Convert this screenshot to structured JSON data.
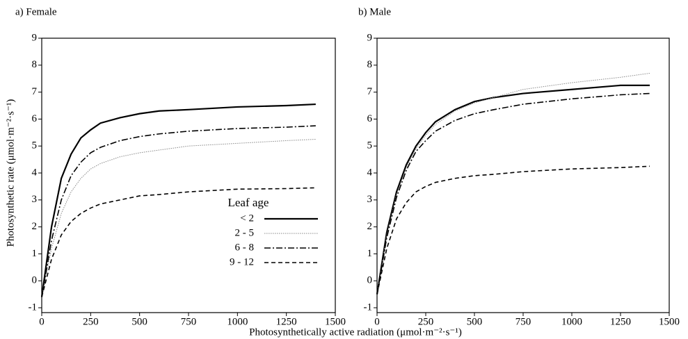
{
  "chart_data": [
    {
      "type": "line",
      "title": "a) Female",
      "ylabel": "Photosynthetic rate (μmol·m⁻²·s⁻¹)",
      "xlabel": "Photosynthetically active radiation (μmol·m⁻²·s⁻¹)",
      "legend_title": "Leaf age",
      "legend": "lower right",
      "x": [
        0,
        50,
        100,
        150,
        200,
        250,
        300,
        400,
        500,
        600,
        750,
        1000,
        1250,
        1400
      ],
      "series": [
        {
          "name": "< 2",
          "color": "#000000",
          "style": "solid",
          "values": [
            -0.6,
            2,
            3.8,
            4.7,
            5.3,
            5.6,
            5.85,
            6.05,
            6.2,
            6.3,
            6.35,
            6.45,
            6.5,
            6.55
          ]
        },
        {
          "name": "2 - 5",
          "color": "#888888",
          "style": "dotted",
          "values": [
            -0.6,
            1.2,
            2.5,
            3.3,
            3.8,
            4.15,
            4.35,
            4.6,
            4.75,
            4.85,
            5.0,
            5.1,
            5.2,
            5.25
          ]
        },
        {
          "name": "6 - 8",
          "color": "#000000",
          "style": "dashdot",
          "values": [
            -0.6,
            1.5,
            3.0,
            3.9,
            4.4,
            4.75,
            4.95,
            5.2,
            5.35,
            5.45,
            5.55,
            5.65,
            5.7,
            5.75
          ]
        },
        {
          "name": "9 - 12",
          "color": "#000000",
          "style": "dashed",
          "values": [
            -0.6,
            0.8,
            1.7,
            2.2,
            2.5,
            2.7,
            2.85,
            3.0,
            3.15,
            3.2,
            3.3,
            3.4,
            3.42,
            3.45
          ]
        }
      ],
      "xlim": [
        0,
        1500
      ],
      "xticks": [
        0,
        250,
        500,
        750,
        1000,
        1250,
        1500
      ],
      "ylim": [
        -1,
        9
      ],
      "yticks": [
        -1,
        0,
        1,
        2,
        3,
        4,
        5,
        6,
        7,
        8,
        9
      ]
    },
    {
      "type": "line",
      "title": "b) Male",
      "x": [
        0,
        50,
        100,
        150,
        200,
        250,
        300,
        400,
        500,
        600,
        750,
        1000,
        1250,
        1400
      ],
      "series": [
        {
          "color": "#000000",
          "style": "solid",
          "values": [
            -0.5,
            1.8,
            3.3,
            4.3,
            5.0,
            5.5,
            5.9,
            6.35,
            6.65,
            6.8,
            6.95,
            7.1,
            7.25,
            7.25
          ]
        },
        {
          "color": "#888888",
          "style": "dotted",
          "values": [
            -0.5,
            1.7,
            3.2,
            4.2,
            4.9,
            5.4,
            5.8,
            6.3,
            6.6,
            6.8,
            7.1,
            7.35,
            7.55,
            7.7
          ]
        },
        {
          "color": "#000000",
          "style": "dashdot",
          "values": [
            -0.5,
            1.6,
            3.1,
            4.1,
            4.8,
            5.2,
            5.55,
            5.95,
            6.2,
            6.35,
            6.55,
            6.75,
            6.9,
            6.95
          ]
        },
        {
          "color": "#000000",
          "style": "dashed",
          "values": [
            -0.5,
            1.2,
            2.3,
            2.9,
            3.3,
            3.5,
            3.65,
            3.8,
            3.9,
            3.95,
            4.05,
            4.15,
            4.2,
            4.25
          ]
        }
      ],
      "xlim": [
        0,
        1500
      ],
      "xticks": [
        0,
        250,
        500,
        750,
        1000,
        1250,
        1500
      ],
      "ylim": [
        -1,
        9
      ],
      "yticks": [
        -1,
        0,
        1,
        2,
        3,
        4,
        5,
        6,
        7,
        8,
        9
      ]
    }
  ]
}
